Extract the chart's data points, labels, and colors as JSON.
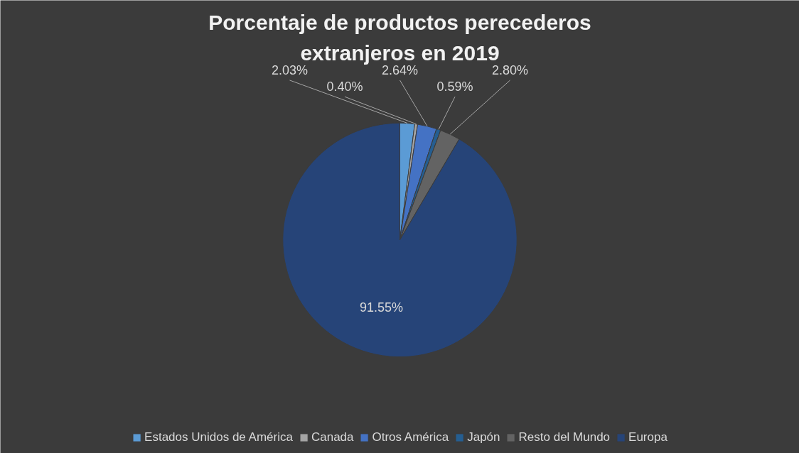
{
  "chart_data": {
    "type": "pie",
    "title": "Porcentaje de productos perecederos extranjeros en 2019",
    "categories": [
      "Estados Unidos de América",
      "Canada",
      "Otros América",
      "Japón",
      "Resto del Mundo",
      "Europa"
    ],
    "values": [
      2.03,
      0.4,
      2.64,
      0.59,
      2.8,
      91.55
    ],
    "colors": [
      "#5b9bd5",
      "#a5a5a5",
      "#4472c4",
      "#255e91",
      "#636363",
      "#264478"
    ],
    "value_labels": [
      "2.03%",
      "0.40%",
      "2.64%",
      "0.59%",
      "2.80%",
      "91.55%"
    ],
    "legend": "bottom"
  }
}
